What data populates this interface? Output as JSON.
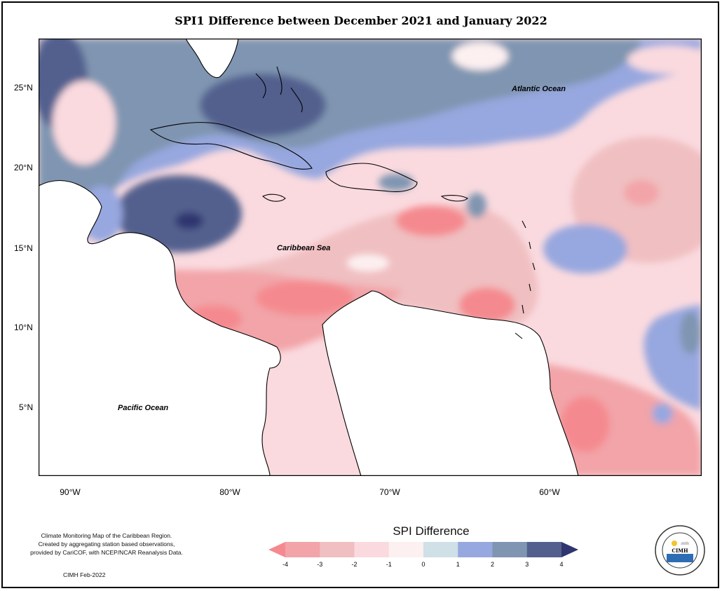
{
  "title": "SPI1 Difference between December 2021 and January 2022",
  "labels": {
    "atlantic": "Atlantic Ocean",
    "caribbean": "Caribbean Sea",
    "pacific": "Pacific Ocean"
  },
  "lat_ticks": [
    "25°N",
    "20°N",
    "15°N",
    "10°N",
    "5°N"
  ],
  "lon_ticks": [
    "90°W",
    "80°W",
    "70°W",
    "60°W"
  ],
  "credit": {
    "line1": "Climate Monitoring Map of the Caribbean Region.",
    "line2": "Created by aggregating station based observations,",
    "line3": "provided by CariCOF, with NCEP/NCAR Reanalysis Data.",
    "stamp": "CIMH Feb-2022"
  },
  "legend": {
    "title": "SPI Difference",
    "ticks": [
      "-4",
      "-3",
      "-2",
      "-1",
      "0",
      "1",
      "2",
      "3",
      "4"
    ],
    "colors": [
      "#f48a8f",
      "#f2a4a8",
      "#f0bfc1",
      "#fadadf",
      "#fdf0f1",
      "#cfe0e6",
      "#97a7df",
      "#7f95b1",
      "#53608e",
      "#2f3570"
    ]
  },
  "logo": {
    "org": "CIMH",
    "ring_text": "Caribbean Institute for Meteorology and Hydrology"
  }
}
